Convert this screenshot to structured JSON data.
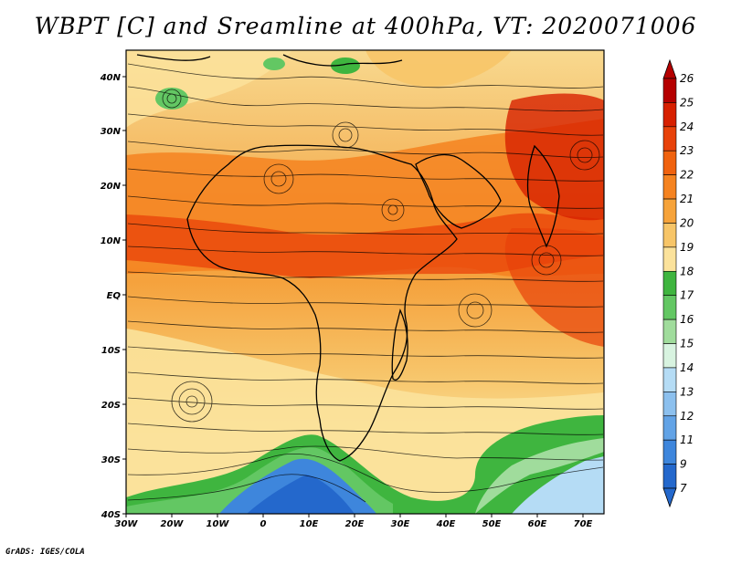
{
  "title": "WBPT [C] and Sreamline at 400hPa, VT: 2020071006",
  "credit": "GrADS: IGES/COLA",
  "map": {
    "lat_labels": [
      "40N",
      "30N",
      "20N",
      "10N",
      "EQ",
      "10S",
      "20S",
      "30S",
      "40S"
    ],
    "lon_labels": [
      "30W",
      "20W",
      "10W",
      "0",
      "10E",
      "20E",
      "30E",
      "40E",
      "50E",
      "60E",
      "70E"
    ],
    "lat_range": [
      -40,
      45
    ],
    "lon_range": [
      -30,
      75
    ]
  },
  "colorbar": {
    "labels": [
      "26",
      "25",
      "24",
      "23",
      "22",
      "21",
      "20",
      "19",
      "18",
      "17",
      "16",
      "15",
      "14",
      "13",
      "12",
      "11",
      "9",
      "7"
    ],
    "colors": [
      "#b50000",
      "#d72000",
      "#e8420a",
      "#f0620e",
      "#f58320",
      "#f6a33a",
      "#f7c568",
      "#fbe29b",
      "#3fb53f",
      "#63c763",
      "#a0dc9c",
      "#d8f3e0",
      "#b5dcf5",
      "#8cc0ee",
      "#62a3e6",
      "#3e86dc",
      "#2468cc"
    ],
    "min_arrow_color": "#2468cc",
    "max_arrow_color": "#b50000"
  }
}
